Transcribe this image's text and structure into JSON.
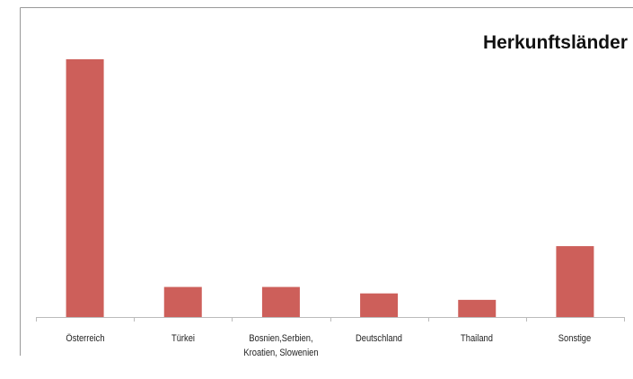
{
  "chart_data": {
    "type": "bar",
    "title": "Herkunftsländer",
    "categories": [
      "Österreich",
      "Türkei",
      "Bosnien,Serbien, Kroatien, Slowenien",
      "Deutschland",
      "Thailand",
      "Sonstige"
    ],
    "values": [
      60,
      7,
      7,
      5.5,
      4,
      16.5
    ],
    "color": "#cd5f5a",
    "ylim": [
      0,
      60
    ]
  }
}
